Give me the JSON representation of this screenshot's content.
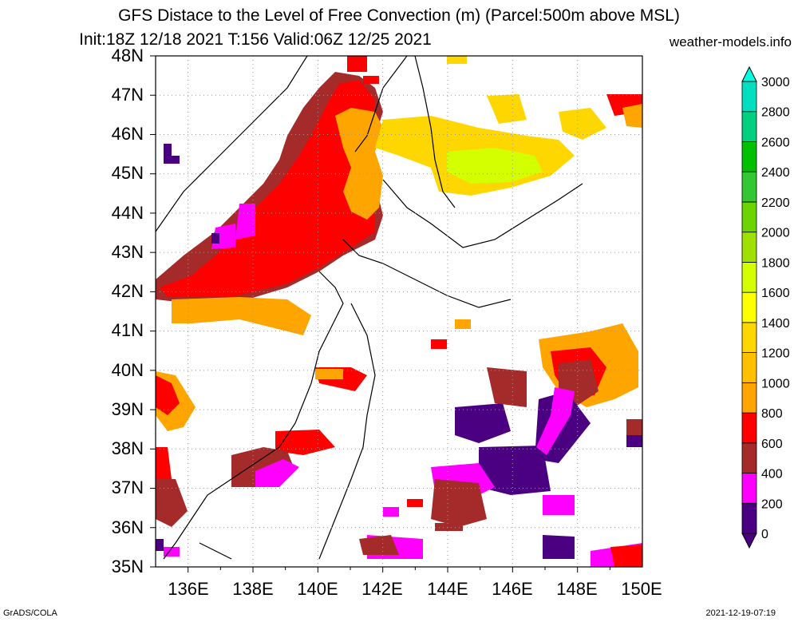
{
  "header": {
    "title_line1": "GFS Distace to the Level of Free Convection (m) (Parcel:500m above MSL)",
    "title_line2": "Init:18Z 12/18 2021 T:156 Valid:06Z 12/25 2021",
    "site": "weather-models.info"
  },
  "axes": {
    "lat_labels": [
      "35N",
      "36N",
      "37N",
      "38N",
      "39N",
      "40N",
      "41N",
      "42N",
      "43N",
      "44N",
      "45N",
      "46N",
      "47N",
      "48N"
    ],
    "lon_labels": [
      "136E",
      "138E",
      "140E",
      "142E",
      "144E",
      "146E",
      "148E",
      "150E"
    ]
  },
  "colorbar": {
    "labels": [
      "0",
      "200",
      "400",
      "600",
      "800",
      "1000",
      "1200",
      "1400",
      "1600",
      "1800",
      "2000",
      "2200",
      "2400",
      "2600",
      "2800",
      "3000"
    ],
    "colors": [
      "#4b0082",
      "#ff00ff",
      "#a52a2a",
      "#ff0000",
      "#ffa500",
      "#ffc000",
      "#ffd700",
      "#ffff00",
      "#d4ff00",
      "#a0e000",
      "#6cd400",
      "#33c833",
      "#00c000",
      "#00d080",
      "#00e0c0",
      "#00ffe0"
    ]
  },
  "footer": {
    "left": "GrADS/COLA",
    "right": "2021-12-19-07:19"
  }
}
